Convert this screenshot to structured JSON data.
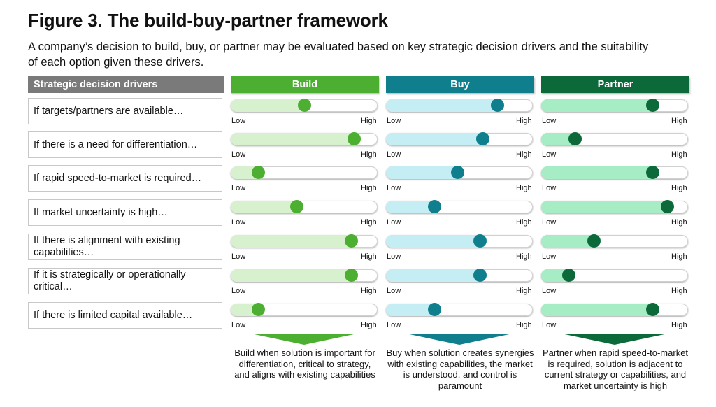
{
  "title": "Figure 3. The build-buy-partner framework",
  "subtitle": "A company’s decision to build, buy, or partner may be evaluated based on key strategic decision drivers and the suitability of each option given these drivers.",
  "drivers_header": "Strategic decision drivers",
  "scale": {
    "low": "Low",
    "high": "High"
  },
  "options": [
    {
      "key": "build",
      "label": "Build",
      "color": "#4caf32",
      "track_fill": "#d7f0cd",
      "knob": "#4caf32",
      "summary": "Build when solution is important for differentiation, critical to strategy, and aligns with existing capabilities"
    },
    {
      "key": "buy",
      "label": "Buy",
      "color": "#0f7f8e",
      "track_fill": "#c4eef4",
      "knob": "#0f7f8e",
      "summary": "Buy when solution creates synergies with existing capabilities, the market is understood, and control is paramount"
    },
    {
      "key": "partner",
      "label": "Partner",
      "color": "#0c6a3a",
      "track_fill": "#a6ecc4",
      "knob": "#0c6a3a",
      "summary": "Partner when rapid speed-to-market is required, solution is adjacent to current strategy or capabilities, and market uncertainty is high"
    }
  ],
  "drivers": [
    {
      "label": "If targets/partners are available…",
      "build": 0.5,
      "buy": 0.76,
      "partner": 0.76
    },
    {
      "label": "If there is a need for differentiation…",
      "build": 0.84,
      "buy": 0.66,
      "partner": 0.23
    },
    {
      "label": "If rapid speed-to-market is required…",
      "build": 0.19,
      "buy": 0.49,
      "partner": 0.76
    },
    {
      "label": "If market uncertainty is high…",
      "build": 0.45,
      "buy": 0.33,
      "partner": 0.86
    },
    {
      "label": "If there is alignment with existing capabilities…",
      "build": 0.82,
      "buy": 0.64,
      "partner": 0.36
    },
    {
      "label": "If it is strategically or operationally critical…",
      "build": 0.82,
      "buy": 0.64,
      "partner": 0.19
    },
    {
      "label": "If there is limited capital available…",
      "build": 0.19,
      "buy": 0.33,
      "partner": 0.76
    }
  ]
}
